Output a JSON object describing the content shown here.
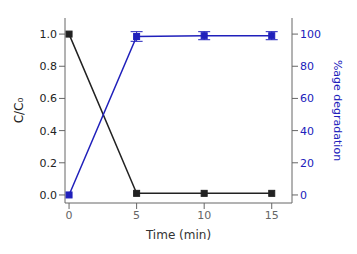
{
  "chart_data": {
    "type": "line",
    "x_label": "Time (min)",
    "y_label": "C/C₀",
    "y2_label": "%age degradation",
    "x": [
      0,
      5,
      10,
      15
    ],
    "xlim": [
      -0.3,
      16.5
    ],
    "xticks": [
      0,
      5,
      10,
      15
    ],
    "ylim": [
      -0.05,
      1.1
    ],
    "yticks": [
      {
        "value": 0,
        "label": "0.0"
      },
      0.2,
      0.4,
      0.6,
      0.8,
      {
        "value": 1,
        "label": "1.0"
      }
    ],
    "y2lim": [
      -5,
      110
    ],
    "y2ticks": [
      0,
      20,
      40,
      60,
      80,
      100
    ],
    "grid": false,
    "series": [
      {
        "color": "#222222",
        "marker": "square",
        "values": [
          1.0,
          0.01,
          0.01,
          0.01
        ]
      },
      {
        "color": "#2020bb",
        "marker": "square",
        "axis": "y2",
        "values": [
          0,
          98.5,
          99.0,
          99.0
        ],
        "errors": [
          0,
          3.0,
          2.5,
          2.5
        ]
      }
    ]
  }
}
